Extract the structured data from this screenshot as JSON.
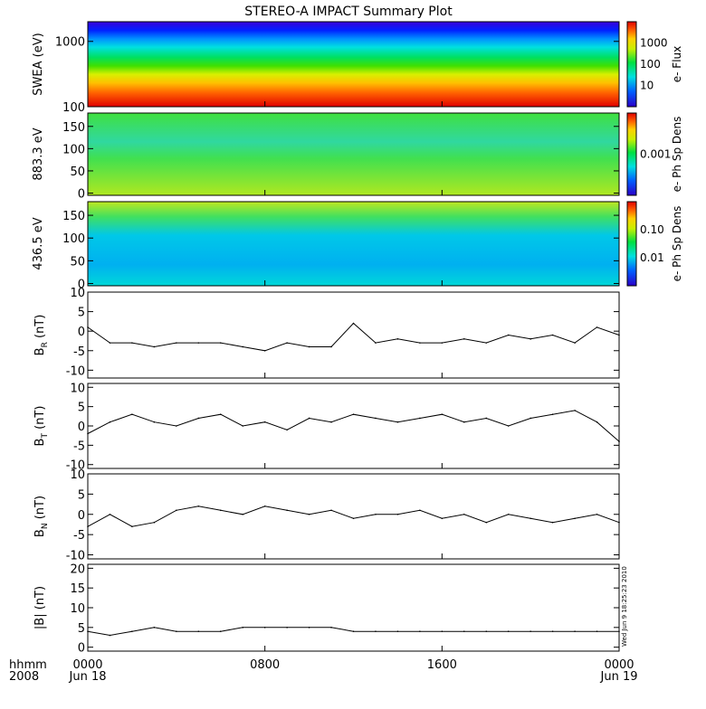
{
  "title": "STEREO-A IMPACT Summary Plot",
  "stamp": "Wed Jun  9 18:25:23 2010",
  "x_axis": {
    "row1_label": "hhmm",
    "row2_label": "2008",
    "ticks": [
      {
        "time": "0000",
        "date": "Jun 18",
        "hour": 0
      },
      {
        "time": "0800",
        "date": "",
        "hour": 8
      },
      {
        "time": "1600",
        "date": "",
        "hour": 16
      },
      {
        "time": "0000",
        "date": "Jun 19",
        "hour": 24
      }
    ],
    "range_hours": [
      0,
      24
    ]
  },
  "chart_data": [
    {
      "type": "heatmap",
      "ylabel": "SWEA (eV)",
      "y_scale": "log",
      "ylim": [
        100,
        2000
      ],
      "y_ticks": [
        "100",
        "1000"
      ],
      "colorbar_label": "e- Flux",
      "colorbar_scale": "log",
      "colorbar_ticks": [
        "10",
        "100",
        "1000"
      ],
      "colormap": "rainbow"
    },
    {
      "type": "heatmap",
      "ylabel": "883.3 eV",
      "ylim": [
        -5,
        180
      ],
      "y_ticks": [
        "0",
        "50",
        "100",
        "150"
      ],
      "colorbar_label": "e- Ph Sp Dens",
      "colorbar_ticks": [
        "0.001"
      ],
      "colormap": "rainbow"
    },
    {
      "type": "heatmap",
      "ylabel": "436.5 eV",
      "ylim": [
        -5,
        180
      ],
      "y_ticks": [
        "0",
        "50",
        "100",
        "150"
      ],
      "colorbar_label": "e- Ph Sp Dens",
      "colorbar_ticks": [
        "0.01",
        "0.10"
      ],
      "colormap": "rainbow"
    },
    {
      "type": "line",
      "ylabel_main": "B",
      "ylabel_sub": "R",
      "ylabel_unit": " (nT)",
      "ylim": [
        -12,
        10
      ],
      "y_ticks": [
        "-10",
        "-5",
        "0",
        "5",
        "10"
      ],
      "x": [
        0,
        1,
        2,
        3,
        4,
        5,
        6,
        7,
        8,
        9,
        10,
        11,
        12,
        13,
        14,
        15,
        16,
        17,
        18,
        19,
        20,
        21,
        22,
        23,
        24
      ],
      "y": [
        1,
        -3,
        -3,
        -4,
        -3,
        -3,
        -3,
        -4,
        -5,
        -3,
        -4,
        -4,
        2,
        -3,
        -2,
        -3,
        -3,
        -2,
        -3,
        -1,
        -2,
        -1,
        -3,
        1,
        -1
      ],
      "color": "#000000"
    },
    {
      "type": "line",
      "ylabel_main": "B",
      "ylabel_sub": "T",
      "ylabel_unit": " (nT)",
      "ylim": [
        -11,
        11
      ],
      "y_ticks": [
        "-10",
        "-5",
        "0",
        "5",
        "10"
      ],
      "x": [
        0,
        1,
        2,
        3,
        4,
        5,
        6,
        7,
        8,
        9,
        10,
        11,
        12,
        13,
        14,
        15,
        16,
        17,
        18,
        19,
        20,
        21,
        22,
        23,
        24
      ],
      "y": [
        -2,
        1,
        3,
        1,
        0,
        2,
        3,
        0,
        1,
        -1,
        2,
        1,
        3,
        2,
        1,
        2,
        3,
        1,
        2,
        0,
        2,
        3,
        4,
        1,
        -4
      ],
      "color": "#000000"
    },
    {
      "type": "line",
      "ylabel_main": "B",
      "ylabel_sub": "N",
      "ylabel_unit": " (nT)",
      "ylim": [
        -11,
        10
      ],
      "y_ticks": [
        "-10",
        "-5",
        "0",
        "5",
        "10"
      ],
      "x": [
        0,
        1,
        2,
        3,
        4,
        5,
        6,
        7,
        8,
        9,
        10,
        11,
        12,
        13,
        14,
        15,
        16,
        17,
        18,
        19,
        20,
        21,
        22,
        23,
        24
      ],
      "y": [
        -3,
        0,
        -3,
        -2,
        1,
        2,
        1,
        0,
        2,
        1,
        0,
        1,
        -1,
        0,
        0,
        1,
        -1,
        0,
        -2,
        0,
        -1,
        -2,
        -1,
        0,
        -2
      ],
      "color": "#000000"
    },
    {
      "type": "line",
      "ylabel_main": "|B|",
      "ylabel_sub": "",
      "ylabel_unit": " (nT)",
      "ylim": [
        -1,
        21
      ],
      "y_ticks": [
        "0",
        "5",
        "10",
        "15",
        "20"
      ],
      "x": [
        0,
        1,
        2,
        3,
        4,
        5,
        6,
        7,
        8,
        9,
        10,
        11,
        12,
        13,
        14,
        15,
        16,
        17,
        18,
        19,
        20,
        21,
        22,
        23,
        24
      ],
      "y": [
        4,
        3,
        4,
        5,
        4,
        4,
        4,
        5,
        5,
        5,
        5,
        5,
        4,
        4,
        4,
        4,
        4,
        4,
        4,
        4,
        4,
        4,
        4,
        4,
        4
      ],
      "color": "#000000"
    }
  ]
}
